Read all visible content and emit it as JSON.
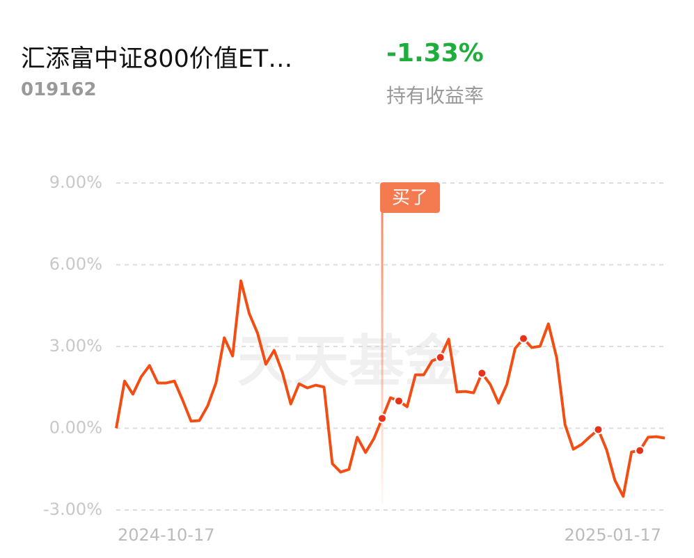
{
  "header": {
    "title": "汇添富中证800价值ET…",
    "code": "019162",
    "return": "-1.33%",
    "return_label": "持有收益率"
  },
  "chart_data": {
    "type": "line",
    "watermark": "天天基金",
    "categories": [
      "2024-10-17",
      null,
      null,
      null,
      null,
      null,
      null,
      null,
      null,
      null,
      null,
      null,
      null,
      null,
      null,
      null,
      null,
      null,
      null,
      null,
      null,
      null,
      null,
      null,
      null,
      null,
      null,
      null,
      null,
      null,
      null,
      null,
      null,
      null,
      null,
      null,
      null,
      null,
      null,
      null,
      null,
      null,
      null,
      null,
      null,
      null,
      null,
      null,
      null,
      null,
      null,
      null,
      null,
      null,
      null,
      null,
      null,
      null,
      null,
      null,
      null,
      null,
      null,
      null,
      null,
      null,
      "2025-01-17"
    ],
    "series": [
      {
        "color": "#f24e14",
        "values": [
          0,
          1.73,
          1.25,
          1.89,
          2.3,
          1.66,
          1.66,
          1.73,
          1.02,
          0.26,
          0.28,
          0.82,
          1.66,
          3.32,
          2.65,
          5.41,
          4.21,
          3.49,
          2.35,
          2.86,
          2.04,
          0.89,
          1.63,
          1.48,
          1.58,
          1.51,
          -1.3,
          -1.61,
          -1.51,
          -0.33,
          -0.89,
          -0.38,
          0.36,
          1.12,
          1.0,
          0.79,
          1.96,
          1.96,
          2.47,
          2.6,
          3.27,
          1.33,
          1.35,
          1.3,
          2.02,
          1.61,
          0.92,
          1.61,
          2.93,
          3.29,
          2.96,
          3.01,
          3.83,
          2.58,
          0.13,
          -0.77,
          -0.59,
          -0.31,
          -0.05,
          -0.79,
          -1.91,
          -2.5,
          -0.87,
          -0.82,
          -0.33,
          -0.31,
          -0.36
        ]
      }
    ],
    "markers": [
      32,
      34,
      39,
      44,
      49,
      58,
      63
    ],
    "annotation": {
      "text": "买了",
      "index": 32,
      "color": "#f47b50"
    },
    "ylim": [
      -3,
      9
    ],
    "yticks": [
      {
        "value": 9,
        "label": "9.00%"
      },
      {
        "value": 6,
        "label": "6.00%"
      },
      {
        "value": 3,
        "label": "3.00%"
      },
      {
        "value": 0,
        "label": "0.00%"
      },
      {
        "value": -3,
        "label": "-3.00%"
      }
    ],
    "grid": true
  }
}
